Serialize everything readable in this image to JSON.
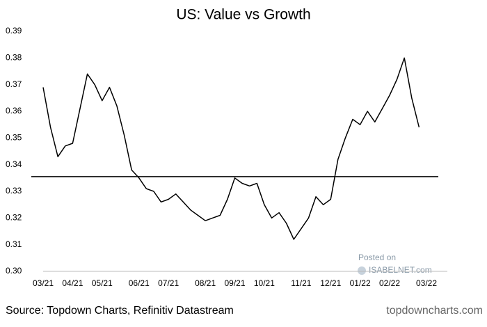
{
  "chart_data": {
    "type": "line",
    "title": "US: Value vs Growth",
    "categories": [
      "03/21",
      null,
      null,
      null,
      "04/21",
      null,
      null,
      null,
      "05/21",
      null,
      null,
      null,
      null,
      "06/21",
      null,
      null,
      null,
      "07/21",
      null,
      null,
      null,
      null,
      "08/21",
      null,
      null,
      null,
      "09/21",
      null,
      null,
      null,
      "10/21",
      null,
      null,
      null,
      null,
      "11/21",
      null,
      null,
      null,
      "12/21",
      null,
      null,
      null,
      "01/22",
      null,
      null,
      null,
      "02/22",
      null,
      null,
      null,
      null,
      "03/22"
    ],
    "series": [
      {
        "name": "US: Value vs Growth",
        "color": "#000000",
        "values": [
          0.369,
          0.354,
          0.343,
          0.347,
          0.348,
          0.361,
          0.374,
          0.37,
          0.364,
          0.369,
          0.362,
          0.351,
          0.338,
          0.335,
          0.331,
          0.33,
          0.326,
          0.327,
          0.329,
          0.326,
          0.323,
          0.321,
          0.319,
          0.32,
          0.321,
          0.327,
          0.335,
          0.333,
          0.332,
          0.333,
          0.325,
          0.32,
          0.322,
          0.318,
          0.312,
          0.316,
          0.32,
          0.328,
          0.325,
          0.327,
          0.342,
          0.35,
          0.357,
          0.355,
          0.36,
          0.356,
          0.361,
          0.366,
          0.372,
          0.38,
          0.365,
          0.354,
          null
        ]
      }
    ],
    "reference_line": 0.3355,
    "ylim": [
      0.3,
      0.39
    ],
    "yticks": [
      {
        "value": 0.3,
        "label": "0.30"
      },
      0.31,
      0.32,
      0.33,
      0.34,
      0.35,
      0.36,
      0.37,
      0.38,
      0.39
    ],
    "grid": false,
    "source": "Source: Topdown Charts, Refinitiv Datastream",
    "credit": "topdowncharts.com",
    "watermark": [
      "Posted on",
      "ISABELNET.com"
    ]
  }
}
